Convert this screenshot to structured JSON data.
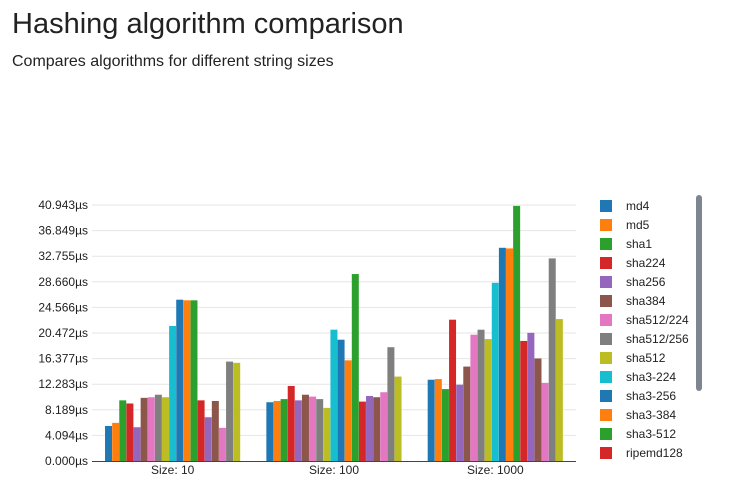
{
  "header": {
    "title": "Hashing algorithm comparison",
    "subtitle": "Compares algorithms for different string sizes"
  },
  "chart_data": {
    "type": "bar",
    "title": "Hashing algorithm comparison",
    "subtitle": "Compares algorithms for different string sizes",
    "xlabel": "",
    "ylabel": "",
    "ylim": [
      0,
      40.943
    ],
    "y_ticks": [
      "0.000µs",
      "4.094µs",
      "8.189µs",
      "12.283µs",
      "16.377µs",
      "20.472µs",
      "24.566µs",
      "28.660µs",
      "32.755µs",
      "36.849µs",
      "40.943µs"
    ],
    "y_tick_values": [
      0,
      4.094,
      8.189,
      12.283,
      16.377,
      20.472,
      24.566,
      28.66,
      32.755,
      36.849,
      40.943
    ],
    "grid": true,
    "legend_position": "right",
    "categories": [
      "Size: 10",
      "Size: 100",
      "Size: 1000"
    ],
    "series": [
      {
        "name": "md4",
        "color": "#1f77b4",
        "values": [
          5.6,
          9.4,
          13.0
        ]
      },
      {
        "name": "md5",
        "color": "#ff7f0e",
        "values": [
          6.1,
          9.6,
          13.1
        ]
      },
      {
        "name": "sha1",
        "color": "#2ca02c",
        "values": [
          9.7,
          9.9,
          11.5
        ]
      },
      {
        "name": "sha224",
        "color": "#d62728",
        "values": [
          9.2,
          12.0,
          22.6
        ]
      },
      {
        "name": "sha256",
        "color": "#9467bd",
        "values": [
          5.4,
          9.7,
          12.2
        ]
      },
      {
        "name": "sha384",
        "color": "#8c564b",
        "values": [
          10.1,
          10.6,
          15.1
        ]
      },
      {
        "name": "sha512/224",
        "color": "#e377c2",
        "values": [
          10.2,
          10.3,
          20.2
        ]
      },
      {
        "name": "sha512/256",
        "color": "#7f7f7f",
        "values": [
          10.6,
          9.9,
          21.0
        ]
      },
      {
        "name": "sha512",
        "color": "#bcbd22",
        "values": [
          10.2,
          8.5,
          19.5
        ]
      },
      {
        "name": "sha3-224",
        "color": "#17becf",
        "values": [
          21.6,
          21.0,
          28.5
        ]
      },
      {
        "name": "sha3-256",
        "color": "#1f77b4",
        "values": [
          25.8,
          19.4,
          34.1
        ]
      },
      {
        "name": "sha3-384",
        "color": "#ff7f0e",
        "values": [
          25.7,
          16.1,
          34.0
        ]
      },
      {
        "name": "sha3-512",
        "color": "#2ca02c",
        "values": [
          25.7,
          29.9,
          40.8
        ]
      },
      {
        "name": "ripemd128",
        "color": "#d62728",
        "values": [
          9.7,
          9.5,
          19.2
        ]
      },
      {
        "name": "",
        "color": "#9467bd",
        "values": [
          7.0,
          10.4,
          20.5
        ]
      },
      {
        "name": "",
        "color": "#8c564b",
        "values": [
          9.6,
          10.2,
          16.4
        ]
      },
      {
        "name": "",
        "color": "#e377c2",
        "values": [
          5.3,
          11.0,
          12.5
        ]
      },
      {
        "name": "",
        "color": "#7f7f7f",
        "values": [
          15.9,
          18.2,
          32.4
        ]
      },
      {
        "name": "",
        "color": "#bcbd22",
        "values": [
          15.7,
          13.5,
          22.7
        ]
      }
    ]
  }
}
